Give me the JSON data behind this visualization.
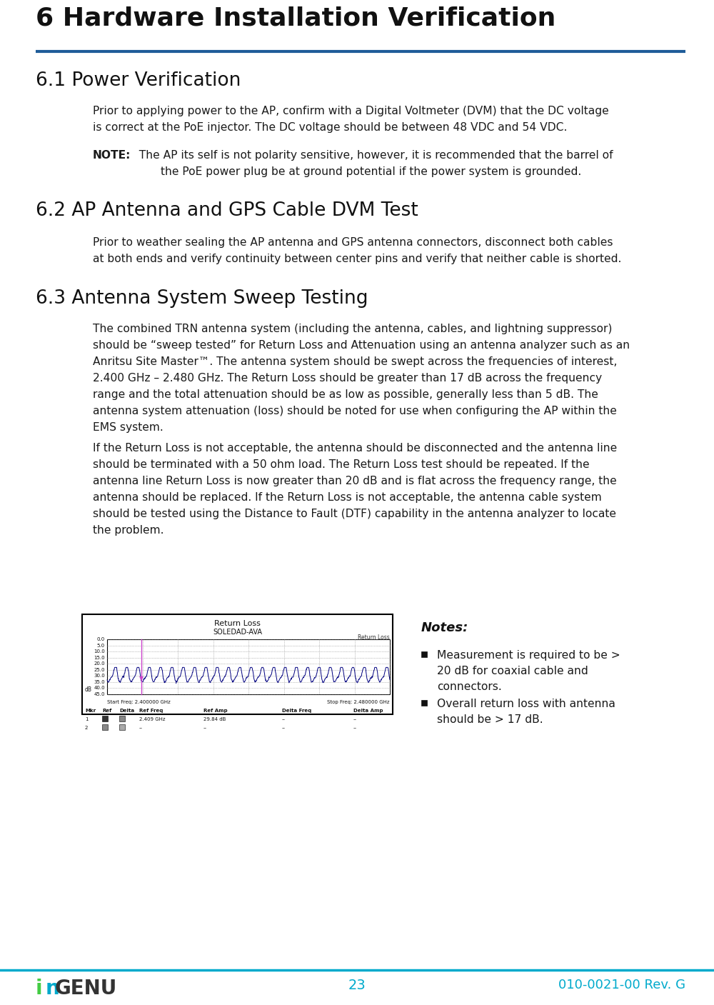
{
  "page_width": 10.0,
  "page_height": 14.07,
  "bg_color": "#ffffff",
  "header_title": "6 Hardware Installation Verification",
  "header_line_color": "#1f5c99",
  "section1_title": "6.1 Power Verification",
  "section1_body_line1": "Prior to applying power to the AP, confirm with a Digital Voltmeter (DVM) that the DC voltage",
  "section1_body_line2": "is correct at the PoE injector. The DC voltage should be between 48 VDC and 54 VDC.",
  "section1_note_bold": "NOTE:",
  "section1_note_rest": "  The AP its self is not polarity sensitive, however, it is recommended that the barrel of",
  "section1_note_line2": "the PoE power plug be at ground potential if the power system is grounded.",
  "section2_title": "6.2 AP Antenna and GPS Cable DVM Test",
  "section2_body_line1": "Prior to weather sealing the AP antenna and GPS antenna connectors, disconnect both cables",
  "section2_body_line2": "at both ends and verify continuity between center pins and verify that neither cable is shorted.",
  "section3_title": "6.3 Antenna System Sweep Testing",
  "section3_body1_l1": "The combined TRN antenna system (including the antenna, cables, and lightning suppressor)",
  "section3_body1_l2": "should be “sweep tested” for Return Loss and Attenuation using an antenna analyzer such as an",
  "section3_body1_l3": "Anritsu Site Master™. The antenna system should be swept across the frequencies of interest,",
  "section3_body1_l4": "2.400 GHz – 2.480 GHz. The Return Loss should be greater than 17 dB across the frequency",
  "section3_body1_l5": "range and the total attenuation should be as low as possible, generally less than 5 dB. The",
  "section3_body1_l6": "antenna system attenuation (loss) should be noted for use when configuring the AP within the",
  "section3_body1_l7": "EMS system.",
  "section3_body2_l1": "If the Return Loss is not acceptable, the antenna should be disconnected and the antenna line",
  "section3_body2_l2": "should be terminated with a 50 ohm load. The Return Loss test should be repeated. If the",
  "section3_body2_l3": "antenna line Return Loss is now greater than 20 dB and is flat across the frequency range, the",
  "section3_body2_l4": "antenna should be replaced. If the Return Loss is not acceptable, the antenna cable system",
  "section3_body2_l5": "should be tested using the Distance to Fault (DTF) capability in the antenna analyzer to locate",
  "section3_body2_l6": "the problem.",
  "notes_title": "Notes:",
  "note1_l1": "Measurement is required to be >",
  "note1_l2": "20 dB for coaxial cable and",
  "note1_l3": "connectors.",
  "note2_l1": "Overall return loss with antenna",
  "note2_l2": "should be > 17 dB.",
  "footer_page": "23",
  "footer_doc": "010-0021-00 Rev. G",
  "footer_line_color": "#00aacc",
  "chart_title": "Return Loss",
  "chart_subtitle": "SOLEDAD-AVA",
  "chart_label": "Return Loss",
  "chart_start_freq": "Start Freq: 2.400000 GHz",
  "chart_stop_freq": "Stop Freq: 2.480000 GHz",
  "chart_marker_headers": [
    "Mkr",
    "Ref",
    "Delta",
    "Ref Freq",
    "Ref Amp",
    "Delta Freq",
    "Delta Amp"
  ],
  "chart_marker_row1": [
    "1",
    "sq1",
    "sq2",
    "2.409 GHz",
    "29.84 dB",
    "--",
    "--"
  ],
  "chart_marker_row2": [
    "2",
    "sq3",
    "sq4",
    "--",
    "--",
    "--",
    "--"
  ],
  "text_color": "#1a1a1a",
  "body_fontsize": 11.2,
  "section_title_fontsize": 19,
  "main_title_fontsize": 26,
  "logo_ingenu_color": "#333333",
  "logo_i_color": "#44cc44",
  "logo_n_color": "#00aacc",
  "footer_text_color": "#00aacc",
  "chart_line_color": "#000080",
  "chart_marker_color": "#cc44cc"
}
